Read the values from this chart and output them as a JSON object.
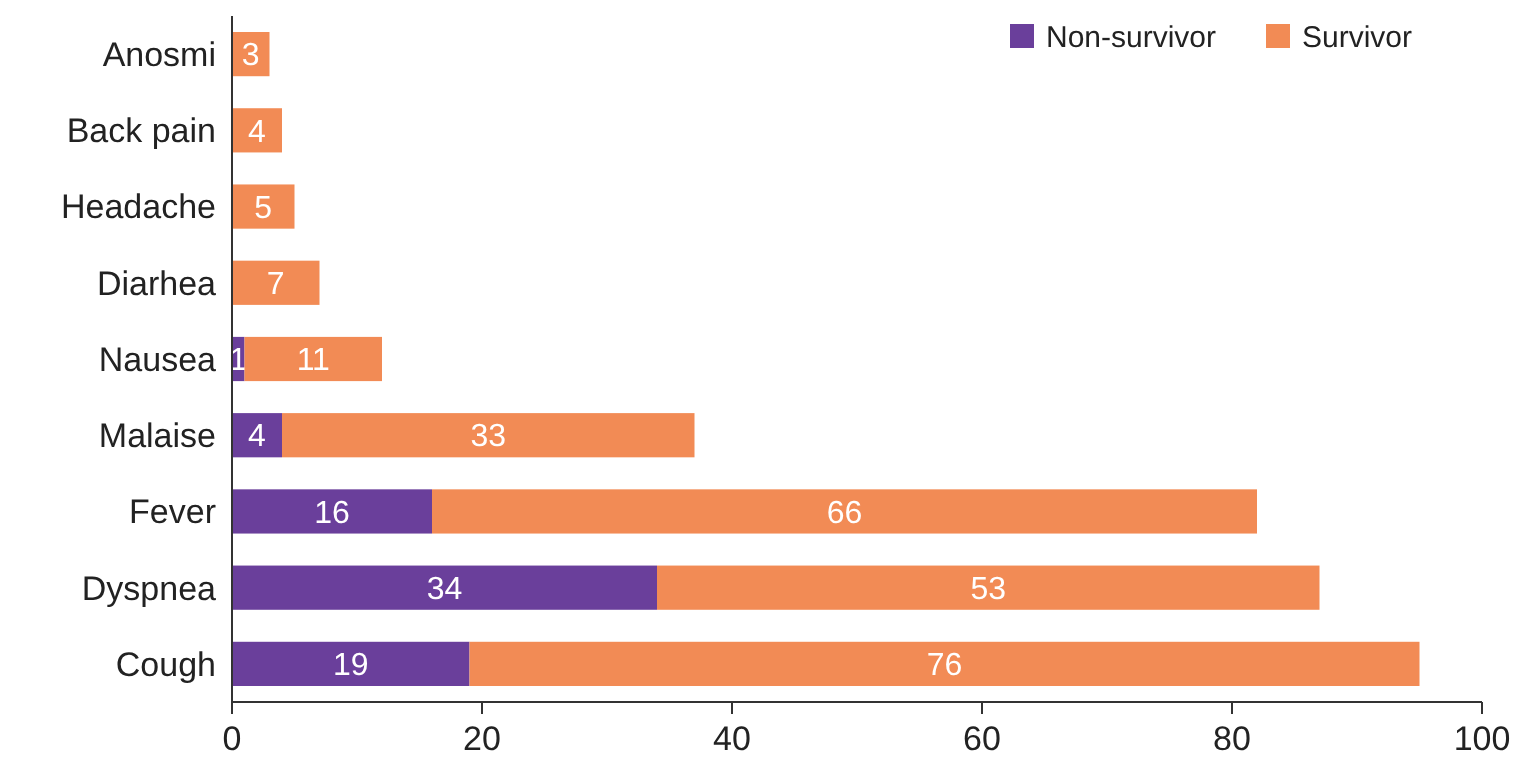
{
  "chart_data": {
    "type": "bar",
    "orientation": "horizontal",
    "stacked": true,
    "categories": [
      "Anosmi",
      "Back pain",
      "Headache",
      "Diarhea",
      "Nausea",
      "Malaise",
      "Fever",
      "Dyspnea",
      "Cough"
    ],
    "series": [
      {
        "name": "Non-survivor",
        "color": "#6a3f9b",
        "values": [
          null,
          null,
          null,
          null,
          1,
          4,
          16,
          34,
          19
        ]
      },
      {
        "name": "Survivor",
        "color": "#f28b55",
        "values": [
          3,
          4,
          5,
          7,
          11,
          33,
          66,
          53,
          76
        ]
      }
    ],
    "xlim": [
      0,
      100
    ],
    "xticks": [
      0,
      20,
      40,
      60,
      80,
      100
    ],
    "data_labels": true,
    "legend": "top right",
    "grid": false
  }
}
